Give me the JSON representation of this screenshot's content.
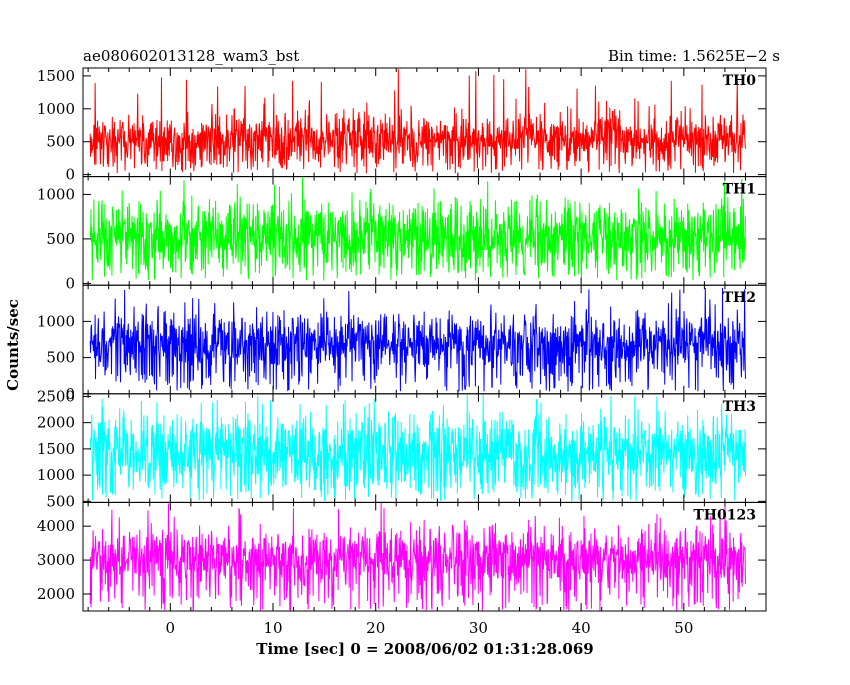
{
  "header": {
    "title": "ae080602013128_wam3_bst",
    "bin_time": "Bin time: 1.5625E−2 s"
  },
  "chart_data": {
    "type": "line",
    "title": "ae080602013128_wam3_bst",
    "bin_time_s": 0.015625,
    "xlabel": "Time [sec] 0 = 2008/06/02 01:31:28.069",
    "ylabel": "Counts/sec",
    "xlim": [
      -8.5,
      58
    ],
    "data_range": [
      -7.8,
      56
    ],
    "xticks": [
      0,
      10,
      20,
      30,
      40,
      50
    ],
    "grid": false,
    "panels": [
      {
        "name": "TH0",
        "color": "#ff0000",
        "ylim": [
          -30,
          1620
        ],
        "yticks": [
          0,
          500,
          1000,
          1500
        ],
        "mean": 560,
        "spread": 230,
        "spike_max": 1620,
        "floor": 20
      },
      {
        "name": "TH1",
        "color": "#00ff00",
        "ylim": [
          -20,
          1200
        ],
        "yticks": [
          0,
          500,
          1000
        ],
        "mean": 540,
        "spread": 230,
        "spike_max": 1200,
        "floor": 30
      },
      {
        "name": "TH2",
        "color": "#0000ff",
        "ylim": [
          0,
          1500
        ],
        "yticks": [
          0,
          500,
          1000
        ],
        "mean": 700,
        "spread": 240,
        "spike_max": 1500,
        "floor": 30
      },
      {
        "name": "TH3",
        "color": "#00ffff",
        "ylim": [
          480,
          2550
        ],
        "yticks": [
          500,
          1000,
          1500,
          2000,
          2500
        ],
        "mean": 1450,
        "spread": 420,
        "spike_max": 2550,
        "floor": 500
      },
      {
        "name": "TH0123",
        "color": "#ff00ff",
        "ylim": [
          1500,
          4700
        ],
        "yticks": [
          2000,
          3000,
          4000
        ],
        "mean": 3050,
        "spread": 520,
        "spike_max": 4700,
        "floor": 1500
      }
    ]
  }
}
